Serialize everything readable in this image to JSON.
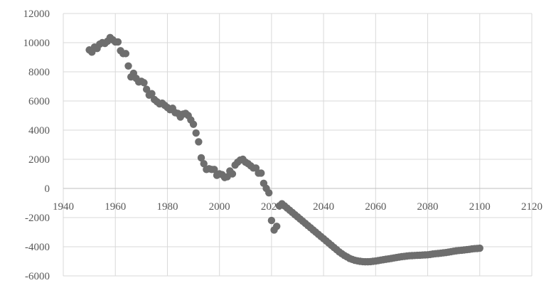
{
  "chart_data": {
    "type": "scatter",
    "title": "",
    "xlabel": "",
    "ylabel": "",
    "xlim": [
      1940,
      2120
    ],
    "ylim": [
      -6000,
      12000
    ],
    "x_ticks": [
      1940,
      1960,
      1980,
      2000,
      2020,
      2040,
      2060,
      2080,
      2100,
      2120
    ],
    "y_ticks": [
      -6000,
      -4000,
      -2000,
      0,
      2000,
      4000,
      6000,
      8000,
      10000,
      12000
    ],
    "x_tick_labels": [
      "1940",
      "1960",
      "1980",
      "2000",
      "2020",
      "2040",
      "2060",
      "2080",
      "2100",
      "2120"
    ],
    "y_tick_labels": [
      "-6000",
      "-4000",
      "-2000",
      "0",
      "2000",
      "4000",
      "6000",
      "8000",
      "10000",
      "12000"
    ],
    "grid": true,
    "legend": "none",
    "marker_color": "#6e6e6e",
    "series": [
      {
        "x": [
          1950,
          1951,
          1952,
          1953,
          1954,
          1955,
          1956,
          1957,
          1958,
          1959,
          1960,
          1961,
          1962,
          1963,
          1964,
          1965,
          1966,
          1967,
          1968,
          1969,
          1970,
          1971,
          1972,
          1973,
          1974,
          1975,
          1976,
          1977,
          1978,
          1979,
          1980,
          1981,
          1982,
          1983,
          1984,
          1985,
          1986,
          1987,
          1988,
          1989,
          1990,
          1991,
          1992,
          1993,
          1994,
          1995,
          1996,
          1997,
          1998,
          1999,
          2000,
          2001,
          2002,
          2003,
          2004,
          2005,
          2006,
          2007,
          2008,
          2009,
          2010,
          2011,
          2012,
          2013,
          2014,
          2015,
          2016,
          2017,
          2018,
          2019,
          2020,
          2021,
          2022,
          2023,
          2024,
          2025,
          2026,
          2027,
          2028,
          2029,
          2030,
          2031,
          2032,
          2033,
          2034,
          2035,
          2036,
          2037,
          2038,
          2039,
          2040,
          2041,
          2042,
          2043,
          2044,
          2045,
          2046,
          2047,
          2048,
          2049,
          2050,
          2051,
          2052,
          2053,
          2054,
          2055,
          2056,
          2057,
          2058,
          2059,
          2060,
          2061,
          2062,
          2063,
          2064,
          2065,
          2066,
          2067,
          2068,
          2069,
          2070,
          2071,
          2072,
          2073,
          2074,
          2075,
          2076,
          2077,
          2078,
          2079,
          2080,
          2081,
          2082,
          2083,
          2084,
          2085,
          2086,
          2087,
          2088,
          2089,
          2090,
          2091,
          2092,
          2093,
          2094,
          2095,
          2096,
          2097,
          2098,
          2099,
          2100
        ],
        "y": [
          9500,
          9350,
          9700,
          9600,
          9900,
          10000,
          9950,
          10100,
          10350,
          10200,
          10050,
          10050,
          9450,
          9250,
          9250,
          8400,
          7650,
          7900,
          7550,
          7300,
          7350,
          7250,
          6800,
          6400,
          6500,
          6100,
          5950,
          5800,
          5850,
          5700,
          5550,
          5400,
          5500,
          5200,
          5150,
          4900,
          5100,
          5150,
          5000,
          4700,
          4400,
          3800,
          3200,
          2100,
          1700,
          1300,
          1350,
          1300,
          1300,
          900,
          1000,
          950,
          750,
          800,
          1200,
          1000,
          1600,
          1800,
          1950,
          2000,
          1800,
          1700,
          1550,
          1400,
          1400,
          1050,
          1050,
          350,
          0,
          -300,
          -2200,
          -2850,
          -2600,
          -1200,
          -1050,
          -1200,
          -1350,
          -1500,
          -1650,
          -1800,
          -1950,
          -2100,
          -2250,
          -2400,
          -2550,
          -2700,
          -2850,
          -3000,
          -3150,
          -3300,
          -3450,
          -3600,
          -3750,
          -3900,
          -4050,
          -4200,
          -4350,
          -4480,
          -4600,
          -4700,
          -4800,
          -4870,
          -4930,
          -4970,
          -5000,
          -5020,
          -5030,
          -5030,
          -5020,
          -5000,
          -4980,
          -4950,
          -4920,
          -4890,
          -4860,
          -4830,
          -4800,
          -4770,
          -4740,
          -4710,
          -4680,
          -4660,
          -4640,
          -4620,
          -4610,
          -4600,
          -4590,
          -4580,
          -4570,
          -4560,
          -4550,
          -4530,
          -4500,
          -4480,
          -4460,
          -4440,
          -4420,
          -4400,
          -4370,
          -4340,
          -4310,
          -4280,
          -4260,
          -4240,
          -4220,
          -4200,
          -4180,
          -4150,
          -4130,
          -4120,
          -4100
        ]
      }
    ]
  }
}
